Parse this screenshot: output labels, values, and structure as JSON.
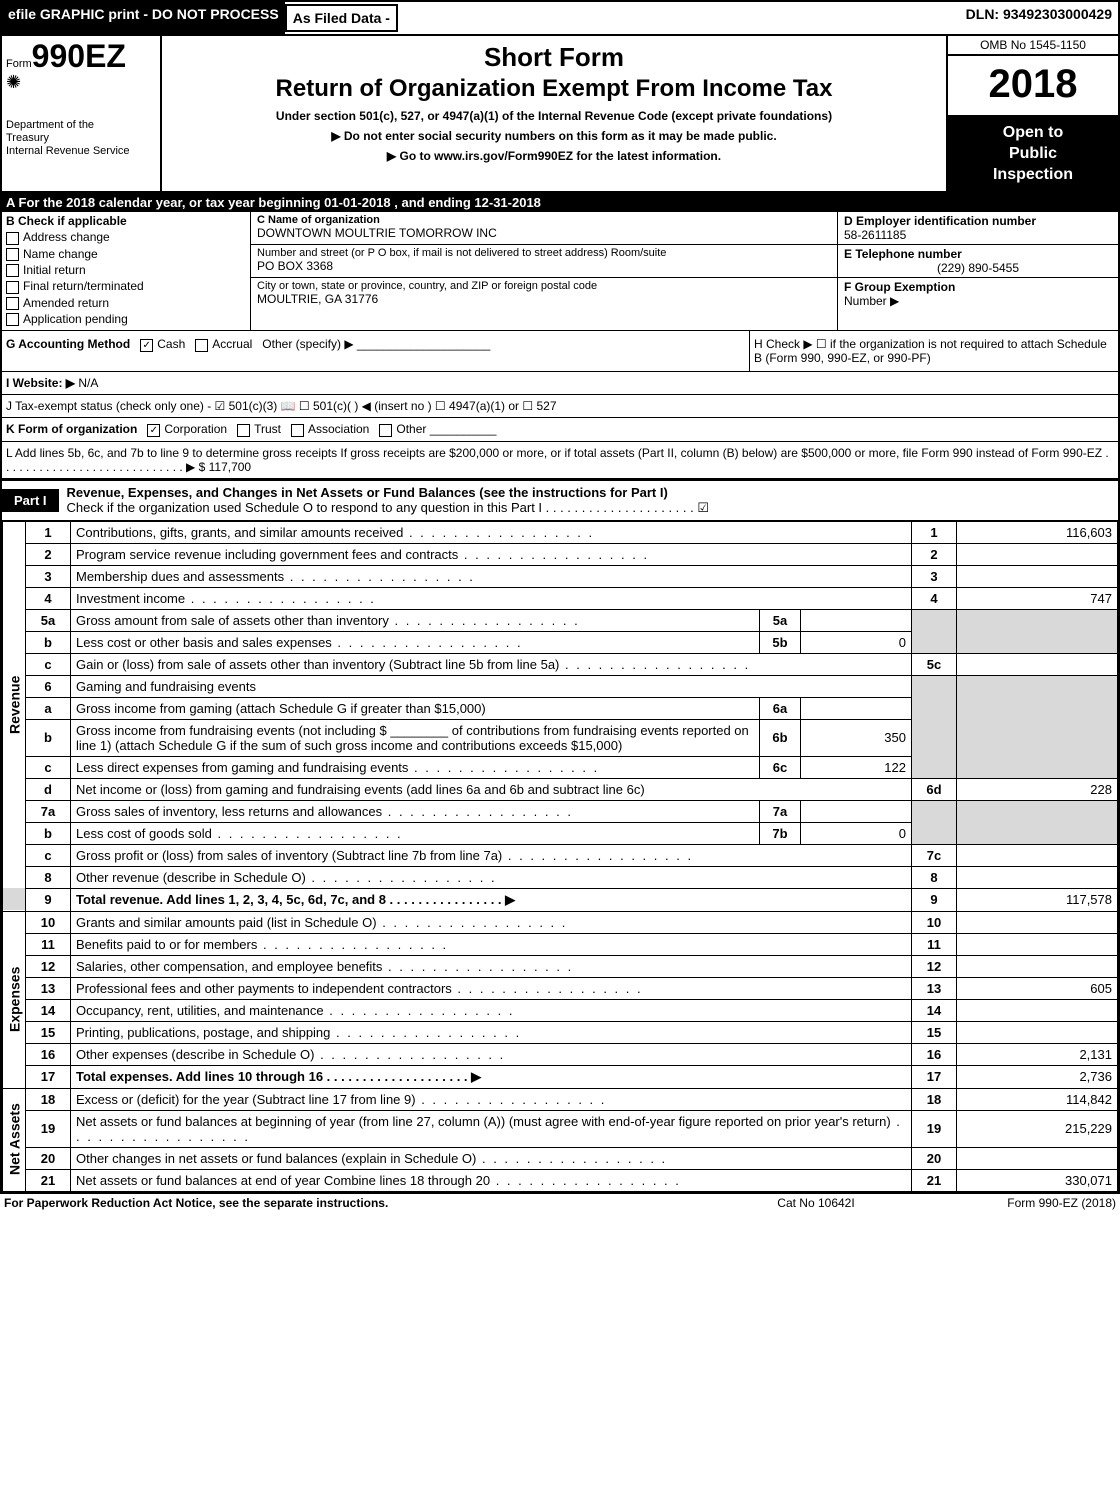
{
  "topbar": {
    "efile": "efile GRAPHIC print - DO NOT PROCESS",
    "asfiled": "As Filed Data -",
    "dln": "DLN: 93492303000429"
  },
  "header": {
    "form_prefix": "Form",
    "form_no": "990EZ",
    "dept1": "Department of the",
    "dept2": "Treasury",
    "dept3": "Internal Revenue Service",
    "short_form": "Short Form",
    "title": "Return of Organization Exempt From Income Tax",
    "subtitle": "Under section 501(c), 527, or 4947(a)(1) of the Internal Revenue Code (except private foundations)",
    "warn": "Do not enter social security numbers on this form as it may be made public.",
    "goto": "Go to www.irs.gov/Form990EZ for the latest information.",
    "omb": "OMB No 1545-1150",
    "year": "2018",
    "open1": "Open to",
    "open2": "Public",
    "open3": "Inspection"
  },
  "row_a": "A  For the 2018 calendar year, or tax year beginning 01-01-2018                  , and ending 12-31-2018",
  "section_b": {
    "label": "B  Check if applicable",
    "addr_change": "Address change",
    "name_change": "Name change",
    "initial": "Initial return",
    "final": "Final return/terminated",
    "amended": "Amended return",
    "app_pending": "Application pending"
  },
  "section_c": {
    "c_label": "C Name of organization",
    "c_name": "DOWNTOWN MOULTRIE TOMORROW INC",
    "addr_label": "Number and street (or P O box, if mail is not delivered to street address)   Room/suite",
    "addr": "PO BOX 3368",
    "city_label": "City or town, state or province, country, and ZIP or foreign postal code",
    "city": "MOULTRIE, GA  31776"
  },
  "section_d": {
    "d_label": "D Employer identification number",
    "ein": "58-2611185",
    "e_label": "E Telephone number",
    "phone": "(229) 890-5455",
    "f_label": "F Group Exemption",
    "f_label2": "Number   ▶"
  },
  "row_g": {
    "acct": "G Accounting Method",
    "cash": "Cash",
    "accrual": "Accrual",
    "other": "Other (specify) ▶",
    "h": "H   Check ▶  ☐  if the organization is not required to attach Schedule B (Form 990, 990-EZ, or 990-PF)"
  },
  "row_i": {
    "label": "I Website: ▶",
    "val": "N/A"
  },
  "row_j": "J Tax-exempt status (check only one) - ☑ 501(c)(3) 📖 ☐ 501(c)(  ) ◀ (insert no ) ☐ 4947(a)(1) or ☐ 527",
  "row_k": {
    "label": "K Form of organization",
    "corp": "Corporation",
    "trust": "Trust",
    "assoc": "Association",
    "other": "Other"
  },
  "row_l": {
    "text": "L Add lines 5b, 6c, and 7b to line 9 to determine gross receipts  If gross receipts are $200,000 or more, or if total assets (Part II, column (B) below) are $500,000 or more, file Form 990 instead of Form 990-EZ . . . . . . . . . . . . . . . . . . . . . . . . . . . . ▶ $ 117,700"
  },
  "part1": {
    "tab": "Part I",
    "title": "Revenue, Expenses, and Changes in Net Assets or Fund Balances (see the instructions for Part I)",
    "check": "Check if the organization used Schedule O to respond to any question in this Part I . . . . . . . . . . . . . . . . . . . . . ☑"
  },
  "lines": {
    "l1": {
      "n": "1",
      "d": "Contributions, gifts, grants, and similar amounts received",
      "ref": "1",
      "amt": "116,603"
    },
    "l2": {
      "n": "2",
      "d": "Program service revenue including government fees and contracts",
      "ref": "2",
      "amt": ""
    },
    "l3": {
      "n": "3",
      "d": "Membership dues and assessments",
      "ref": "3",
      "amt": ""
    },
    "l4": {
      "n": "4",
      "d": "Investment income",
      "ref": "4",
      "amt": "747"
    },
    "l5a": {
      "n": "5a",
      "d": "Gross amount from sale of assets other than inventory",
      "sub": "5a",
      "sv": ""
    },
    "l5b": {
      "n": "b",
      "d": "Less  cost or other basis and sales expenses",
      "sub": "5b",
      "sv": "0"
    },
    "l5c": {
      "n": "c",
      "d": "Gain or (loss) from sale of assets other than inventory (Subtract line 5b from line 5a)",
      "ref": "5c",
      "amt": ""
    },
    "l6": {
      "n": "6",
      "d": "Gaming and fundraising events"
    },
    "l6a": {
      "n": "a",
      "d": "Gross income from gaming (attach Schedule G if greater than $15,000)",
      "sub": "6a",
      "sv": ""
    },
    "l6b": {
      "n": "b",
      "d": "Gross income from fundraising events (not including $ ________ of contributions from fundraising events reported on line 1) (attach Schedule G if the sum of such gross income and contributions exceeds $15,000)",
      "sub": "6b",
      "sv": "350"
    },
    "l6c": {
      "n": "c",
      "d": "Less  direct expenses from gaming and fundraising events",
      "sub": "6c",
      "sv": "122"
    },
    "l6d": {
      "n": "d",
      "d": "Net income or (loss) from gaming and fundraising events (add lines 6a and 6b and subtract line 6c)",
      "ref": "6d",
      "amt": "228"
    },
    "l7a": {
      "n": "7a",
      "d": "Gross sales of inventory, less returns and allowances",
      "sub": "7a",
      "sv": ""
    },
    "l7b": {
      "n": "b",
      "d": "Less  cost of goods sold",
      "sub": "7b",
      "sv": "0"
    },
    "l7c": {
      "n": "c",
      "d": "Gross profit or (loss) from sales of inventory (Subtract line 7b from line 7a)",
      "ref": "7c",
      "amt": ""
    },
    "l8": {
      "n": "8",
      "d": "Other revenue (describe in Schedule O)",
      "ref": "8",
      "amt": ""
    },
    "l9": {
      "n": "9",
      "d": "Total revenue. Add lines 1, 2, 3, 4, 5c, 6d, 7c, and 8   . . . . . . . . . . . . . . . .  ▶",
      "ref": "9",
      "amt": "117,578"
    },
    "l10": {
      "n": "10",
      "d": "Grants and similar amounts paid (list in Schedule O)",
      "ref": "10",
      "amt": ""
    },
    "l11": {
      "n": "11",
      "d": "Benefits paid to or for members",
      "ref": "11",
      "amt": ""
    },
    "l12": {
      "n": "12",
      "d": "Salaries, other compensation, and employee benefits",
      "ref": "12",
      "amt": ""
    },
    "l13": {
      "n": "13",
      "d": "Professional fees and other payments to independent contractors",
      "ref": "13",
      "amt": "605"
    },
    "l14": {
      "n": "14",
      "d": "Occupancy, rent, utilities, and maintenance",
      "ref": "14",
      "amt": ""
    },
    "l15": {
      "n": "15",
      "d": "Printing, publications, postage, and shipping",
      "ref": "15",
      "amt": ""
    },
    "l16": {
      "n": "16",
      "d": "Other expenses (describe in Schedule O)",
      "ref": "16",
      "amt": "2,131"
    },
    "l17": {
      "n": "17",
      "d": "Total expenses. Add lines 10 through 16    . . . . . . . . . . . . . . . . . . . .  ▶",
      "ref": "17",
      "amt": "2,736"
    },
    "l18": {
      "n": "18",
      "d": "Excess or (deficit) for the year (Subtract line 17 from line 9)",
      "ref": "18",
      "amt": "114,842"
    },
    "l19": {
      "n": "19",
      "d": "Net assets or fund balances at beginning of year (from line 27, column (A)) (must agree with end-of-year figure reported on prior year's return)",
      "ref": "19",
      "amt": "215,229"
    },
    "l20": {
      "n": "20",
      "d": "Other changes in net assets or fund balances (explain in Schedule O)",
      "ref": "20",
      "amt": ""
    },
    "l21": {
      "n": "21",
      "d": "Net assets or fund balances at end of year  Combine lines 18 through 20",
      "ref": "21",
      "amt": "330,071"
    }
  },
  "vert": {
    "revenue": "Revenue",
    "expenses": "Expenses",
    "netassets": "Net Assets"
  },
  "footer": {
    "l": "For Paperwork Reduction Act Notice, see the separate instructions.",
    "m": "Cat No 10642I",
    "r": "Form 990-EZ (2018)"
  }
}
